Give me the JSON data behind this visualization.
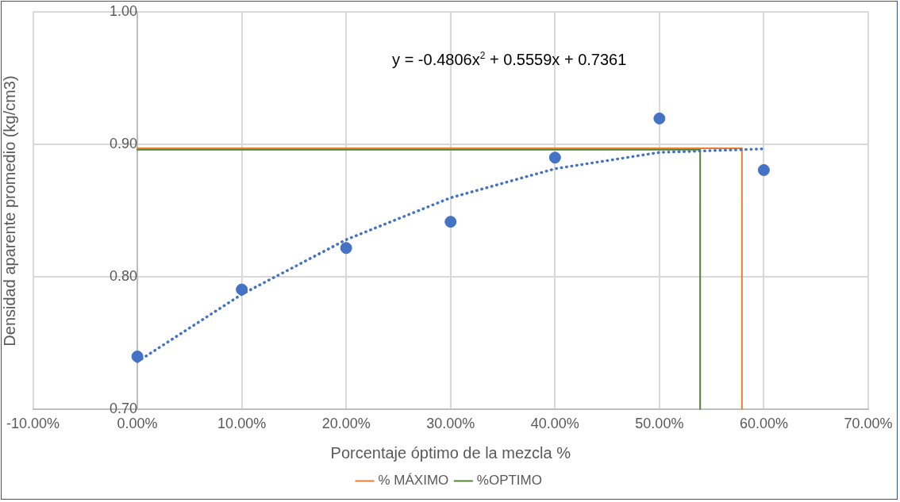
{
  "chart_data": {
    "type": "scatter",
    "xlabel": "Porcentaje óptimo de la mezcla %",
    "ylabel": "Densidad aparente promedio (kg/cm3)",
    "annotations": [
      "y = -0.4806x$^{2}$ + 0.5559x + 0.7361"
    ],
    "x": [
      0,
      0.1,
      0.2,
      0.3,
      0.4,
      0.5,
      0.6
    ],
    "series": [
      {
        "color": "#4472c4",
        "marker": "circle",
        "values": [
          0.74,
          0.7905,
          0.8218,
          0.8416,
          0.89,
          0.9195,
          0.8806
        ]
      },
      {
        "type": "line",
        "color": "#4472c4",
        "line_style": "dotted",
        "marker": "none",
        "x": [
          0,
          0.1,
          0.2,
          0.3,
          0.4,
          0.5,
          0.6
        ],
        "values": [
          0.7361,
          0.7869,
          0.8281,
          0.8597,
          0.8816,
          0.8939,
          0.8966
        ]
      },
      {
        "type": "line",
        "name": "% MÁXIMO",
        "color": "#ed7d31",
        "line_style": "solid",
        "marker": "none",
        "x": [
          0,
          0.579,
          0.579
        ],
        "values": [
          0.897,
          0.897,
          0.7
        ]
      },
      {
        "type": "line",
        "name": "%OPTIMO",
        "color": "#548235",
        "line_style": "solid",
        "marker": "none",
        "x": [
          0,
          0.539,
          0.539
        ],
        "values": [
          0.896,
          0.896,
          0.7
        ]
      }
    ],
    "xlim": [
      -0.1,
      0.7
    ],
    "xticks": [
      {
        "value": -0.1,
        "label": "-10.00%"
      },
      {
        "value": 0,
        "label": "0.00%"
      },
      {
        "value": 0.1,
        "label": "10.00%"
      },
      {
        "value": 0.2,
        "label": "20.00%"
      },
      {
        "value": 0.3,
        "label": "30.00%"
      },
      {
        "value": 0.4,
        "label": "40.00%"
      },
      {
        "value": 0.5,
        "label": "50.00%"
      },
      {
        "value": 0.6,
        "label": "60.00%"
      },
      {
        "value": 0.7,
        "label": "70.00%"
      }
    ],
    "ylim": [
      0.7,
      1.0
    ],
    "yticks": [
      {
        "value": 0.7,
        "label": "0.70"
      },
      {
        "value": 0.8,
        "label": "0.80"
      },
      {
        "value": 0.9,
        "label": "0.90"
      },
      {
        "value": 1.0,
        "label": "1.00"
      }
    ],
    "grid": true,
    "legend": "bottom"
  }
}
